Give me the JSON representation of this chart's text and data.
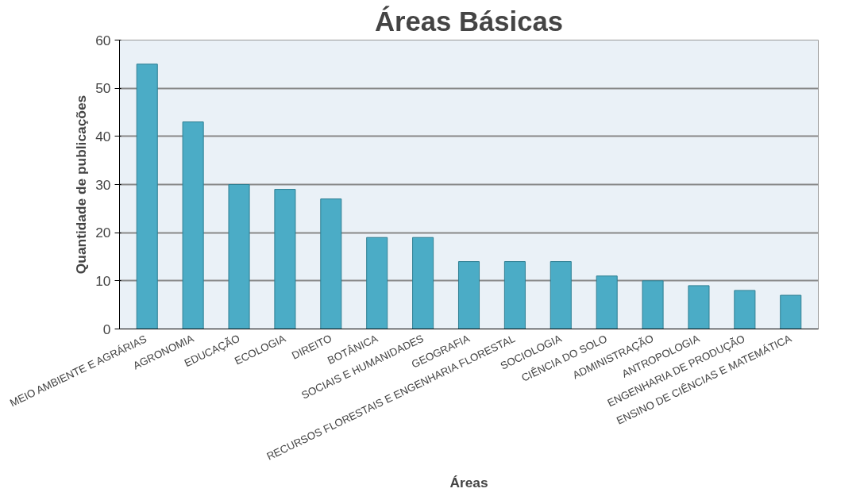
{
  "chart_data": {
    "type": "bar",
    "title": "Áreas Básicas",
    "xlabel": "Áreas",
    "ylabel": "Quantidade de publicações",
    "categories": [
      "MEIO AMBIENTE E AGRÁRIAS",
      "AGRONOMIA",
      "EDUCAÇÃO",
      "ECOLOGIA",
      "DIREITO",
      "BOTÂNICA",
      "SOCIAIS E HUMANIDADES",
      "GEOGRAFIA",
      "RECURSOS FLORESTAIS E ENGENHARIA FLORESTAL",
      "SOCIOLOGIA",
      "CIÊNCIA DO SOLO",
      "ADMINISTRAÇÃO",
      "ANTROPOLOGIA",
      "ENGENHARIA DE PRODUÇÃO",
      "ENSINO DE CIÊNCIAS E MATEMÁTICA"
    ],
    "values": [
      55,
      43,
      30,
      29,
      27,
      19,
      19,
      14,
      14,
      14,
      11,
      10,
      9,
      8,
      7
    ],
    "color": "#4bacc6",
    "ylim": [
      0,
      60
    ],
    "yticks": [
      0,
      10,
      20,
      30,
      40,
      50,
      60
    ],
    "grid": "y"
  }
}
